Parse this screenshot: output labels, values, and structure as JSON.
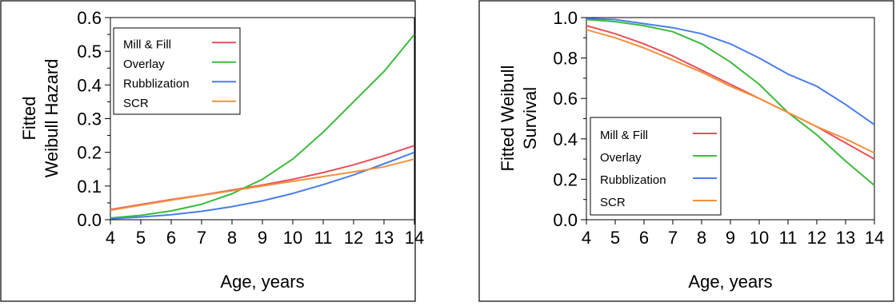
{
  "chart_data": [
    {
      "type": "line",
      "title": "",
      "xlabel": "Age, years",
      "ylabel": [
        "Fitted",
        "Weibull Hazard"
      ],
      "xlim": [
        4,
        14
      ],
      "ylim": [
        0,
        0.6
      ],
      "x_ticks": [
        "4",
        "5",
        "6",
        "7",
        "8",
        "9",
        "10",
        "11",
        "12",
        "13",
        "14"
      ],
      "y_ticks": [
        "0.0",
        "0.1",
        "0.2",
        "0.3",
        "0.4",
        "0.5",
        "0.6"
      ],
      "legend_position": "top-left",
      "grid": false,
      "x": [
        4,
        5,
        6,
        7,
        8,
        9,
        10,
        11,
        12,
        13,
        14
      ],
      "series": [
        {
          "name": "Mill & Fill",
          "color": "#e8505b",
          "values": [
            0.03,
            0.045,
            0.06,
            0.073,
            0.088,
            0.103,
            0.12,
            0.14,
            0.163,
            0.19,
            0.22
          ]
        },
        {
          "name": "Overlay",
          "color": "#3cbb3c",
          "values": [
            0.005,
            0.013,
            0.026,
            0.046,
            0.077,
            0.12,
            0.18,
            0.26,
            0.35,
            0.44,
            0.55
          ]
        },
        {
          "name": "Rubblization",
          "color": "#4a7ee8",
          "values": [
            0.003,
            0.008,
            0.015,
            0.025,
            0.039,
            0.056,
            0.078,
            0.104,
            0.133,
            0.166,
            0.2
          ]
        },
        {
          "name": "SCR",
          "color": "#f0923c",
          "values": [
            0.028,
            0.043,
            0.058,
            0.072,
            0.086,
            0.1,
            0.114,
            0.128,
            0.142,
            0.157,
            0.18
          ]
        }
      ]
    },
    {
      "type": "line",
      "title": "",
      "xlabel": "Age, years",
      "ylabel": [
        "Fitted Weibull",
        "Survival"
      ],
      "xlim": [
        4,
        14
      ],
      "ylim": [
        0,
        1.0
      ],
      "x_ticks": [
        "4",
        "5",
        "6",
        "7",
        "8",
        "9",
        "10",
        "11",
        "12",
        "13",
        "14"
      ],
      "y_ticks": [
        "0.0",
        "0.2",
        "0.4",
        "0.6",
        "0.8",
        "1.0"
      ],
      "legend_position": "bottom-left",
      "grid": false,
      "x": [
        4,
        5,
        6,
        7,
        8,
        9,
        10,
        11,
        12,
        13,
        14
      ],
      "series": [
        {
          "name": "Mill & Fill",
          "color": "#e8505b",
          "values": [
            0.96,
            0.92,
            0.87,
            0.81,
            0.74,
            0.67,
            0.6,
            0.53,
            0.46,
            0.38,
            0.3
          ]
        },
        {
          "name": "Overlay",
          "color": "#3cbb3c",
          "values": [
            0.99,
            0.98,
            0.96,
            0.93,
            0.87,
            0.78,
            0.67,
            0.53,
            0.42,
            0.29,
            0.17
          ]
        },
        {
          "name": "Rubblization",
          "color": "#4a7ee8",
          "values": [
            0.995,
            0.99,
            0.97,
            0.95,
            0.92,
            0.87,
            0.8,
            0.72,
            0.66,
            0.57,
            0.47
          ]
        },
        {
          "name": "SCR",
          "color": "#f0923c",
          "values": [
            0.94,
            0.9,
            0.85,
            0.79,
            0.73,
            0.66,
            0.6,
            0.53,
            0.46,
            0.4,
            0.33
          ]
        }
      ]
    }
  ]
}
